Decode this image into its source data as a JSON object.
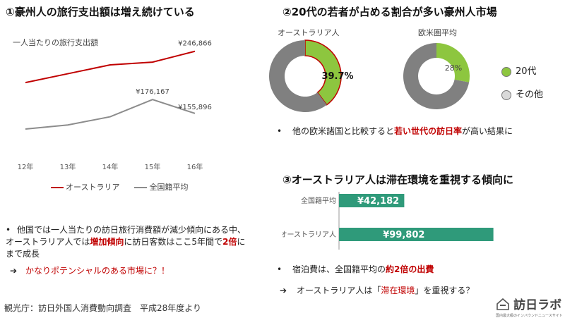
{
  "colors": {
    "australia_red": "#c00000",
    "avg_gray": "#8c8c8c",
    "donut_green": "#8dc63f",
    "donut_gray": "#808080",
    "bar_teal": "#2f9a7a",
    "legend_other": "#d9d9d9"
  },
  "section1": {
    "title": "①豪州人の旅行支出額は増え続けている",
    "subtitle": "一人当たりの旅行支出額",
    "bullet_pre": "他国では一人当たりの訪日旅行消費額が減少傾向にある中、オーストラリア人では",
    "bullet_red1": "増加傾向",
    "bullet_mid": "に訪日客数はここ5年間で",
    "bullet_red2": "2倍",
    "bullet_post": "にまで成長",
    "arrow_text": "かなりポテンシャルのある市場に？！"
  },
  "section2": {
    "title": "②20代の若者が占める割合が多い豪州人市場",
    "bullet_pre": "他の欧米諸国と比較すると",
    "bullet_red": "若い世代の訪日率",
    "bullet_post": "が高い結果に"
  },
  "section3": {
    "title": "③オーストラリア人は滞在環境を重視する傾向に",
    "bullet_pre": "宿泊費は、全国籍平均の",
    "bullet_red": "約2倍の出費",
    "arrow_pre": "オーストラリア人は「",
    "arrow_red": "滞在環境",
    "arrow_post": "」を重視する？"
  },
  "source": "観光庁：訪日外国人消費動向調査　平成28年度より",
  "logo": {
    "name": "訪日ラボ",
    "tagline": "国内最大級のインバウンドニュースサイト"
  },
  "chart_data": [
    {
      "type": "line",
      "title": "一人当たりの旅行支出額",
      "categories": [
        "12年",
        "13年",
        "14年",
        "15年",
        "16年"
      ],
      "ylim": [
        100000,
        260000
      ],
      "series": [
        {
          "name": "オーストラリア",
          "color": "#c00000",
          "values": [
            201000,
            214000,
            227000,
            231000,
            246866
          ],
          "labels": [
            "",
            "",
            "",
            "",
            "¥246,866"
          ]
        },
        {
          "name": "全国籍平均",
          "color": "#8c8c8c",
          "values": [
            133000,
            139000,
            151000,
            176167,
            155896
          ],
          "labels": [
            "",
            "",
            "",
            "¥176,167",
            "¥155,896"
          ]
        }
      ]
    },
    {
      "type": "pie",
      "title": "オーストラリア人",
      "slices": [
        {
          "name": "20代",
          "value": 39.7,
          "color": "#8dc63f"
        },
        {
          "name": "その他",
          "value": 60.3,
          "color": "#808080"
        }
      ],
      "label": "39.7%"
    },
    {
      "type": "pie",
      "title": "欧米圏平均",
      "slices": [
        {
          "name": "20代",
          "value": 28,
          "color": "#8dc63f"
        },
        {
          "name": "その他",
          "value": 72,
          "color": "#808080"
        }
      ],
      "label": "28%"
    },
    {
      "type": "bar",
      "orientation": "horizontal",
      "categories": [
        "全国籍平均",
        "オーストラリア人"
      ],
      "values": [
        42182,
        99802
      ],
      "labels": [
        "¥42,182",
        "¥99,802"
      ],
      "color": "#2f9a7a",
      "xlim": [
        0,
        105000
      ]
    }
  ],
  "donut_legend": [
    {
      "label": "20代",
      "color": "#8dc63f"
    },
    {
      "label": "その他",
      "color": "#d9d9d9"
    }
  ]
}
